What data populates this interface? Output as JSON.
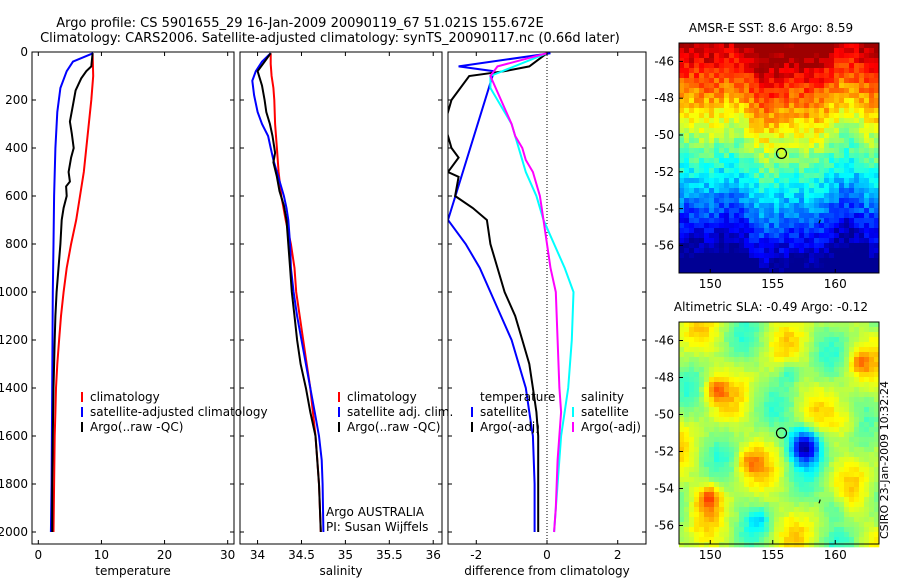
{
  "title_line1": "Argo profile: CS 5901655_29 16-Jan-2009 20090119_67 51.021S 155.672E",
  "title_line2": "Climatology: CARS2006. Satellite-adjusted climatology: synTS_20090117.nc (0.66d later)",
  "side_label": "CSIRO 23-Jan-2009 10:32:24",
  "agency_line1": "Argo AUSTRALIA",
  "agency_line2": "PI: Susan Wijffels",
  "colors": {
    "climatology": "#ff0000",
    "satellite": "#0000ff",
    "argo": "#000000",
    "cyan": "#00ffff",
    "magenta": "#ff00ff"
  },
  "chart_data": [
    {
      "type": "line",
      "xlabel": "temperature",
      "xlim": [
        -1,
        31
      ],
      "ylim": [
        2050,
        0
      ],
      "y_reversed": true,
      "xticks": [
        0,
        10,
        20,
        30
      ],
      "yticks": [
        0,
        200,
        400,
        600,
        800,
        1000,
        1200,
        1400,
        1600,
        1800,
        2000
      ],
      "legend": [
        "climatology",
        "satellite-adjusted climatology",
        "Argo(..raw -QC)"
      ],
      "series": [
        {
          "name": "climatology",
          "color": "#ff0000",
          "points": [
            [
              8.6,
              5
            ],
            [
              8.7,
              100
            ],
            [
              8.4,
              200
            ],
            [
              8.0,
              300
            ],
            [
              7.6,
              400
            ],
            [
              7.2,
              500
            ],
            [
              6.6,
              600
            ],
            [
              6.0,
              700
            ],
            [
              5.2,
              800
            ],
            [
              4.5,
              900
            ],
            [
              4.0,
              1000
            ],
            [
              3.6,
              1100
            ],
            [
              3.3,
              1200
            ],
            [
              3.0,
              1300
            ],
            [
              2.8,
              1400
            ],
            [
              2.7,
              1500
            ],
            [
              2.6,
              1600
            ],
            [
              2.5,
              1800
            ],
            [
              2.4,
              2000
            ]
          ]
        },
        {
          "name": "satellite-adjusted climatology",
          "color": "#0000ff",
          "points": [
            [
              8.7,
              5
            ],
            [
              5.5,
              40
            ],
            [
              4.5,
              80
            ],
            [
              3.5,
              150
            ],
            [
              3.0,
              250
            ],
            [
              2.7,
              400
            ],
            [
              2.5,
              600
            ],
            [
              2.4,
              800
            ],
            [
              2.3,
              1000
            ],
            [
              2.2,
              1400
            ],
            [
              2.1,
              1800
            ],
            [
              2.0,
              2000
            ]
          ]
        },
        {
          "name": "Argo(..raw -QC)",
          "color": "#000000",
          "points": [
            [
              8.6,
              5
            ],
            [
              8.4,
              60
            ],
            [
              7.6,
              80
            ],
            [
              6.8,
              110
            ],
            [
              5.9,
              160
            ],
            [
              5.5,
              220
            ],
            [
              5.0,
              290
            ],
            [
              5.3,
              340
            ],
            [
              5.6,
              400
            ],
            [
              5.2,
              440
            ],
            [
              4.8,
              500
            ],
            [
              5.0,
              540
            ],
            [
              4.4,
              560
            ],
            [
              4.5,
              600
            ],
            [
              4.0,
              650
            ],
            [
              3.7,
              700
            ],
            [
              3.5,
              800
            ],
            [
              3.2,
              900
            ],
            [
              2.9,
              1000
            ],
            [
              2.7,
              1100
            ],
            [
              2.6,
              1200
            ],
            [
              2.5,
              1300
            ],
            [
              2.4,
              1400
            ],
            [
              2.3,
              1600
            ],
            [
              2.2,
              1800
            ],
            [
              2.2,
              2000
            ]
          ]
        }
      ]
    },
    {
      "type": "line",
      "xlabel": "salinity",
      "xlim": [
        33.8,
        36.1
      ],
      "ylim": [
        2050,
        0
      ],
      "y_reversed": true,
      "xticks": [
        34,
        34.5,
        35,
        35.5,
        36
      ],
      "legend": [
        "climatology",
        "satellite adj. clim.",
        "Argo(..raw -QC)"
      ],
      "series": [
        {
          "name": "climatology",
          "color": "#ff0000",
          "points": [
            [
              34.15,
              5
            ],
            [
              34.15,
              50
            ],
            [
              34.16,
              100
            ],
            [
              34.18,
              150
            ],
            [
              34.19,
              200
            ],
            [
              34.2,
              300
            ],
            [
              34.22,
              400
            ],
            [
              34.24,
              500
            ],
            [
              34.27,
              600
            ],
            [
              34.32,
              700
            ],
            [
              34.38,
              800
            ],
            [
              34.42,
              900
            ],
            [
              34.44,
              1000
            ],
            [
              34.48,
              1100
            ],
            [
              34.52,
              1200
            ],
            [
              34.56,
              1300
            ],
            [
              34.6,
              1400
            ],
            [
              34.63,
              1500
            ],
            [
              34.66,
              1600
            ],
            [
              34.68,
              1700
            ],
            [
              34.7,
              1800
            ],
            [
              34.72,
              2000
            ]
          ]
        },
        {
          "name": "satellite adj. clim.",
          "color": "#0000ff",
          "points": [
            [
              34.15,
              5
            ],
            [
              34.05,
              40
            ],
            [
              33.98,
              80
            ],
            [
              33.94,
              120
            ],
            [
              33.96,
              180
            ],
            [
              34.0,
              250
            ],
            [
              34.05,
              300
            ],
            [
              34.12,
              350
            ],
            [
              34.15,
              400
            ],
            [
              34.18,
              450
            ],
            [
              34.22,
              500
            ],
            [
              34.26,
              550
            ],
            [
              34.3,
              600
            ],
            [
              34.33,
              650
            ],
            [
              34.35,
              700
            ],
            [
              34.37,
              800
            ],
            [
              34.38,
              900
            ],
            [
              34.41,
              1000
            ],
            [
              34.45,
              1100
            ],
            [
              34.5,
              1200
            ],
            [
              34.55,
              1300
            ],
            [
              34.6,
              1400
            ],
            [
              34.65,
              1500
            ],
            [
              34.7,
              1600
            ],
            [
              34.73,
              1700
            ],
            [
              34.74,
              1800
            ],
            [
              34.75,
              2000
            ]
          ]
        },
        {
          "name": "Argo(..raw -QC)",
          "color": "#000000",
          "points": [
            [
              34.15,
              5
            ],
            [
              34.08,
              40
            ],
            [
              34.0,
              80
            ],
            [
              34.05,
              140
            ],
            [
              34.08,
              200
            ],
            [
              34.1,
              250
            ],
            [
              34.14,
              300
            ],
            [
              34.17,
              350
            ],
            [
              34.2,
              420
            ],
            [
              34.18,
              460
            ],
            [
              34.22,
              520
            ],
            [
              34.25,
              580
            ],
            [
              34.3,
              640
            ],
            [
              34.33,
              700
            ],
            [
              34.35,
              800
            ],
            [
              34.37,
              900
            ],
            [
              34.39,
              1000
            ],
            [
              34.42,
              1100
            ],
            [
              34.45,
              1200
            ],
            [
              34.49,
              1300
            ],
            [
              34.55,
              1400
            ],
            [
              34.6,
              1500
            ],
            [
              34.66,
              1600
            ],
            [
              34.7,
              1800
            ],
            [
              34.72,
              2000
            ]
          ]
        }
      ]
    },
    {
      "type": "line",
      "xlabel": "difference from climatology",
      "xlim": [
        -2.8,
        2.8
      ],
      "ylim": [
        2050,
        0
      ],
      "y_reversed": true,
      "xticks": [
        -2,
        0,
        2
      ],
      "zero_line": true,
      "legend_left_title": "temperature",
      "legend_left": [
        "satellite",
        "Argo(-adj)"
      ],
      "legend_right_title": "salinity",
      "legend_right": [
        "satellite",
        "Argo(-adj)"
      ],
      "series": [
        {
          "name": "temperature satellite",
          "color": "#0000ff",
          "points": [
            [
              0.1,
              5
            ],
            [
              -2.5,
              60
            ],
            [
              -1.5,
              80
            ],
            [
              -2.8,
              700
            ],
            [
              -2.3,
              800
            ],
            [
              -1.9,
              900
            ],
            [
              -1.6,
              1000
            ],
            [
              -1.3,
              1100
            ],
            [
              -1.0,
              1200
            ],
            [
              -0.8,
              1300
            ],
            [
              -0.6,
              1400
            ],
            [
              -0.5,
              1500
            ],
            [
              -0.4,
              1600
            ],
            [
              -0.35,
              1800
            ],
            [
              -0.35,
              2000
            ]
          ]
        },
        {
          "name": "temperature Argo(-adj)",
          "color": "#000000",
          "points": [
            [
              0.0,
              5
            ],
            [
              -0.5,
              60
            ],
            [
              -1.2,
              80
            ],
            [
              -2.2,
              100
            ],
            [
              -2.7,
              200
            ],
            [
              -2.9,
              300
            ],
            [
              -2.7,
              400
            ],
            [
              -2.5,
              440
            ],
            [
              -2.8,
              500
            ],
            [
              -2.5,
              520
            ],
            [
              -2.6,
              600
            ],
            [
              -2.1,
              650
            ],
            [
              -1.7,
              700
            ],
            [
              -1.6,
              800
            ],
            [
              -1.4,
              900
            ],
            [
              -1.2,
              1000
            ],
            [
              -0.9,
              1100
            ],
            [
              -0.7,
              1200
            ],
            [
              -0.5,
              1300
            ],
            [
              -0.4,
              1400
            ],
            [
              -0.3,
              1500
            ],
            [
              -0.25,
              1600
            ],
            [
              -0.25,
              2000
            ]
          ]
        },
        {
          "name": "salinity satellite",
          "color": "#00ffff",
          "points": [
            [
              0.0,
              5
            ],
            [
              -1.6,
              100
            ],
            [
              -1.6,
              150
            ],
            [
              -1.0,
              300
            ],
            [
              -0.8,
              400
            ],
            [
              -0.6,
              500
            ],
            [
              -0.3,
              600
            ],
            [
              -0.1,
              700
            ],
            [
              0.2,
              800
            ],
            [
              0.5,
              900
            ],
            [
              0.75,
              1000
            ],
            [
              0.7,
              1200
            ],
            [
              0.6,
              1400
            ],
            [
              0.4,
              1600
            ],
            [
              0.3,
              1800
            ],
            [
              0.2,
              2000
            ]
          ]
        },
        {
          "name": "salinity Argo(-adj)",
          "color": "#ff00ff",
          "points": [
            [
              0.0,
              5
            ],
            [
              -1.4,
              60
            ],
            [
              -1.6,
              100
            ],
            [
              -1.3,
              200
            ],
            [
              -1.0,
              300
            ],
            [
              -0.9,
              350
            ],
            [
              -0.7,
              400
            ],
            [
              -0.6,
              450
            ],
            [
              -0.4,
              500
            ],
            [
              -0.3,
              550
            ],
            [
              -0.2,
              600
            ],
            [
              -0.1,
              700
            ],
            [
              0.0,
              800
            ],
            [
              0.1,
              900
            ],
            [
              0.25,
              1000
            ],
            [
              0.3,
              1200
            ],
            [
              0.35,
              1400
            ],
            [
              0.4,
              1500
            ],
            [
              0.3,
              1700
            ],
            [
              0.25,
              1900
            ],
            [
              0.2,
              2000
            ]
          ]
        }
      ]
    },
    {
      "type": "heatmap",
      "title": "AMSR-E SST: 8.6 Argo: 8.59",
      "xlim": [
        147.5,
        163.5
      ],
      "ylim": [
        -57.5,
        -45
      ],
      "xticks": [
        150,
        155,
        160
      ],
      "yticks": [
        -46,
        -48,
        -50,
        -52,
        -54,
        -56
      ],
      "marker": [
        155.7,
        -51.0
      ]
    },
    {
      "type": "heatmap",
      "title": "Altimetric SLA: -0.49 Argo: -0.12",
      "xlim": [
        147.5,
        163.5
      ],
      "ylim": [
        -57.0,
        -45
      ],
      "xticks": [
        150,
        155,
        160
      ],
      "yticks": [
        -46,
        -48,
        -50,
        -52,
        -54,
        -56
      ],
      "marker": [
        155.7,
        -51.0
      ]
    }
  ]
}
